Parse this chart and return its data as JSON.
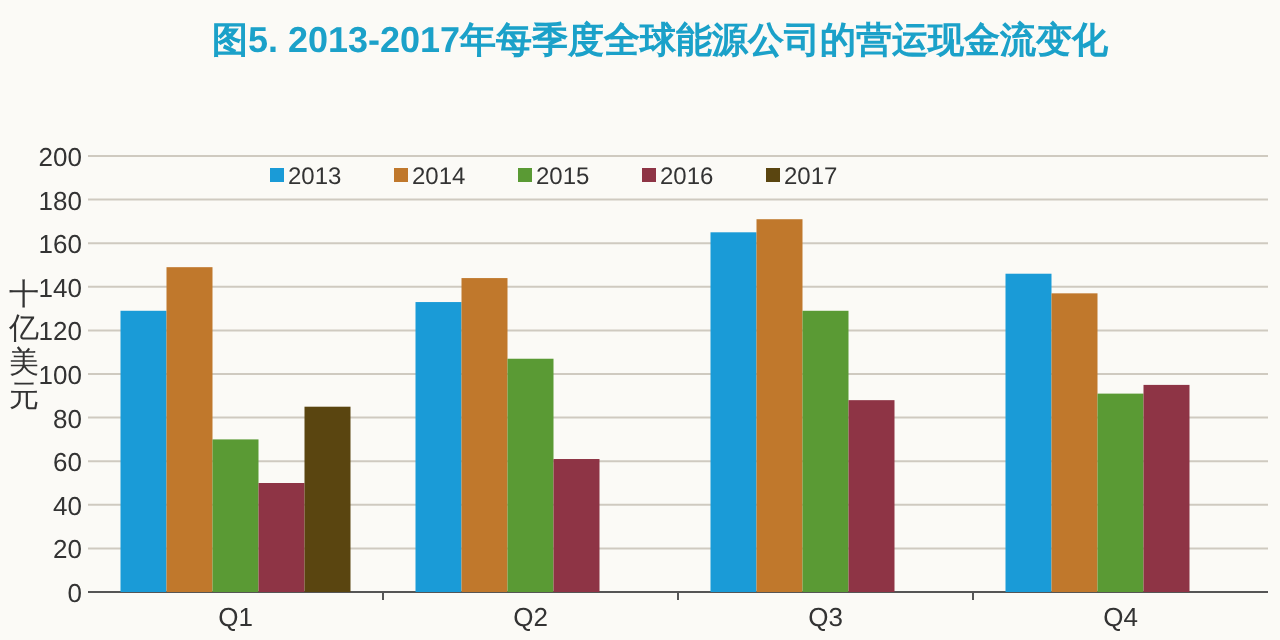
{
  "chart_data": {
    "type": "bar",
    "title": "图5. 2013-2017年每季度全球能源公司的营运现金流变化",
    "ylabel": "十亿美元",
    "categories": [
      "Q1",
      "Q2",
      "Q3",
      "Q4"
    ],
    "series": [
      {
        "name": "2013",
        "color": "#1a9bd7",
        "values": [
          129,
          133,
          165,
          146
        ]
      },
      {
        "name": "2014",
        "color": "#c0782c",
        "values": [
          149,
          144,
          171,
          137
        ]
      },
      {
        "name": "2015",
        "color": "#5a9a34",
        "values": [
          70,
          107,
          129,
          91
        ]
      },
      {
        "name": "2016",
        "color": "#8e3445",
        "values": [
          50,
          61,
          88,
          95
        ]
      },
      {
        "name": "2017",
        "color": "#5a4510",
        "values": [
          85,
          null,
          null,
          null
        ]
      }
    ],
    "ylim": [
      0,
      200
    ],
    "yticks": [
      0,
      20,
      40,
      60,
      80,
      100,
      120,
      140,
      160,
      180,
      200
    ],
    "grid": "y",
    "legend": "top"
  }
}
